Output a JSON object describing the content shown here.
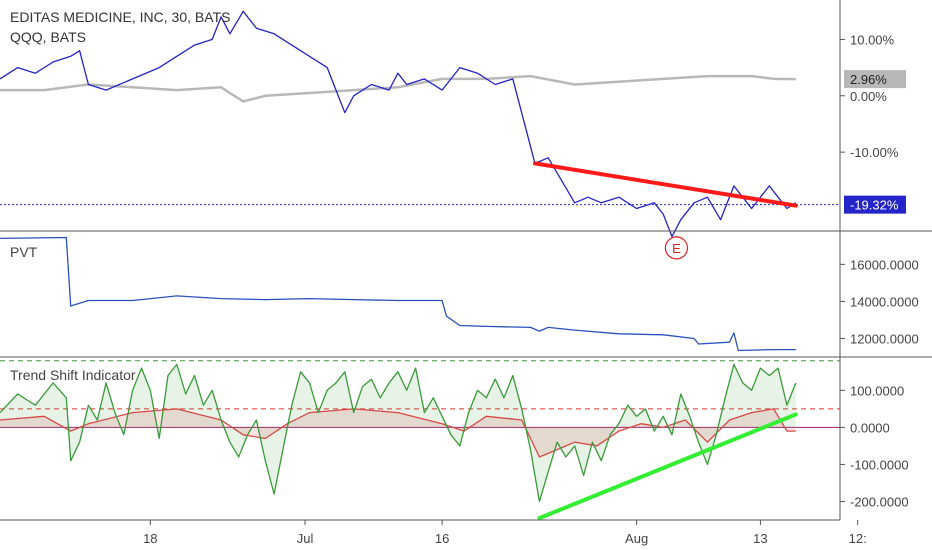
{
  "chart_data": [
    {
      "type": "line",
      "title": "EDITAS MEDICINE, INC, 30, BATS",
      "subtitle": "QQQ, BATS",
      "yticks": [
        "10.00%",
        "0.00%",
        "-10.00%"
      ],
      "ylim": [
        -24,
        17
      ],
      "grid": false,
      "series": [
        {
          "name": "EDITAS MEDICINE, INC",
          "color": "#2424c8",
          "points": [
            [
              0,
              3
            ],
            [
              4,
              5
            ],
            [
              8,
              4
            ],
            [
              12,
              6
            ],
            [
              16,
              7
            ],
            [
              18,
              8
            ],
            [
              20,
              2
            ],
            [
              24,
              1
            ],
            [
              30,
              3
            ],
            [
              36,
              5
            ],
            [
              40,
              7
            ],
            [
              44,
              9
            ],
            [
              48,
              10
            ],
            [
              50,
              14
            ],
            [
              52,
              11
            ],
            [
              55,
              15
            ],
            [
              58,
              12
            ],
            [
              62,
              11
            ],
            [
              66,
              9
            ],
            [
              70,
              7
            ],
            [
              74,
              5
            ],
            [
              76,
              1
            ],
            [
              78,
              -3
            ],
            [
              80,
              0
            ],
            [
              84,
              2
            ],
            [
              88,
              1
            ],
            [
              90,
              4
            ],
            [
              92,
              2
            ],
            [
              96,
              3
            ],
            [
              100,
              1
            ],
            [
              104,
              5
            ],
            [
              108,
              4
            ],
            [
              112,
              2
            ],
            [
              116,
              3
            ],
            [
              119,
              -6
            ],
            [
              121,
              -12
            ],
            [
              124,
              -11
            ],
            [
              127,
              -15
            ],
            [
              130,
              -19
            ],
            [
              133,
              -18
            ],
            [
              136,
              -19
            ],
            [
              140,
              -18
            ],
            [
              144,
              -20
            ],
            [
              148,
              -19
            ],
            [
              150,
              -21
            ],
            [
              152,
              -25
            ],
            [
              154,
              -22
            ],
            [
              157,
              -19
            ],
            [
              160,
              -18
            ],
            [
              163,
              -22
            ],
            [
              166,
              -16
            ],
            [
              168,
              -18
            ],
            [
              170,
              -20
            ],
            [
              172,
              -18
            ],
            [
              174,
              -16
            ],
            [
              176,
              -18
            ],
            [
              178,
              -20
            ],
            [
              180,
              -19
            ]
          ]
        },
        {
          "name": "QQQ, BATS",
          "color": "#b8b8b8",
          "points": [
            [
              0,
              1
            ],
            [
              10,
              1
            ],
            [
              20,
              2
            ],
            [
              30,
              1.5
            ],
            [
              40,
              1
            ],
            [
              50,
              1.5
            ],
            [
              55,
              -1
            ],
            [
              60,
              0
            ],
            [
              70,
              0.5
            ],
            [
              80,
              1
            ],
            [
              90,
              1.5
            ],
            [
              100,
              3
            ],
            [
              110,
              3
            ],
            [
              120,
              3.5
            ],
            [
              130,
              2
            ],
            [
              140,
              2.5
            ],
            [
              150,
              3
            ],
            [
              160,
              3.5
            ],
            [
              170,
              3.5
            ],
            [
              175,
              3
            ],
            [
              180,
              2.96
            ]
          ]
        }
      ],
      "trendline": {
        "color": "#ff1a1a",
        "points": [
          [
            121,
            -12
          ],
          [
            180,
            -19.5
          ]
        ]
      },
      "price_line": {
        "value": -19.32,
        "color": "#2424c8"
      },
      "labels": [
        {
          "text": "2.96%",
          "value": 2.96,
          "color": "#b8b8b8"
        },
        {
          "text": "-19.32%",
          "value": -19.32,
          "color": "#2424c8"
        }
      ],
      "event": {
        "text": "E",
        "x": 153,
        "value": -27,
        "color": "#e02020"
      }
    },
    {
      "type": "line",
      "title": "PVT",
      "yticks": [
        "16000.0000",
        "14000.0000",
        "12000.0000"
      ],
      "ylim": [
        11000,
        17800
      ],
      "series": [
        {
          "color": "#2a52be",
          "points": [
            [
              0,
              17400
            ],
            [
              15,
              17450
            ],
            [
              16,
              13750
            ],
            [
              20,
              14050
            ],
            [
              30,
              14050
            ],
            [
              40,
              14300
            ],
            [
              50,
              14150
            ],
            [
              60,
              14100
            ],
            [
              70,
              14150
            ],
            [
              80,
              14100
            ],
            [
              90,
              14050
            ],
            [
              100,
              14050
            ],
            [
              101,
              13200
            ],
            [
              104,
              12700
            ],
            [
              110,
              12650
            ],
            [
              120,
              12600
            ],
            [
              122,
              12400
            ],
            [
              124,
              12600
            ],
            [
              130,
              12450
            ],
            [
              140,
              12250
            ],
            [
              150,
              12200
            ],
            [
              157,
              12000
            ],
            [
              158,
              11700
            ],
            [
              165,
              11800
            ],
            [
              166,
              12300
            ],
            [
              167,
              11350
            ],
            [
              175,
              11400
            ],
            [
              180,
              11400
            ]
          ]
        }
      ]
    },
    {
      "type": "line",
      "title": "Trend Shift Indicator",
      "yticks": [
        "100.0000",
        "0.0000",
        "-100.0000",
        "-200.0000"
      ],
      "ylim": [
        -250,
        190
      ],
      "series": [
        {
          "color": "#3a9a3a",
          "points": [
            [
              0,
              40
            ],
            [
              4,
              90
            ],
            [
              8,
              60
            ],
            [
              12,
              120
            ],
            [
              15,
              80
            ],
            [
              16,
              -90
            ],
            [
              18,
              -40
            ],
            [
              20,
              60
            ],
            [
              22,
              20
            ],
            [
              24,
              120
            ],
            [
              26,
              40
            ],
            [
              28,
              -20
            ],
            [
              30,
              100
            ],
            [
              32,
              160
            ],
            [
              34,
              100
            ],
            [
              36,
              -30
            ],
            [
              38,
              140
            ],
            [
              40,
              170
            ],
            [
              42,
              90
            ],
            [
              44,
              140
            ],
            [
              46,
              60
            ],
            [
              48,
              100
            ],
            [
              50,
              20
            ],
            [
              52,
              -40
            ],
            [
              54,
              -80
            ],
            [
              56,
              -20
            ],
            [
              58,
              20
            ],
            [
              60,
              -90
            ],
            [
              62,
              -180
            ],
            [
              64,
              -60
            ],
            [
              66,
              60
            ],
            [
              68,
              150
            ],
            [
              70,
              120
            ],
            [
              72,
              40
            ],
            [
              74,
              100
            ],
            [
              76,
              120
            ],
            [
              78,
              150
            ],
            [
              80,
              40
            ],
            [
              82,
              110
            ],
            [
              84,
              130
            ],
            [
              86,
              80
            ],
            [
              88,
              120
            ],
            [
              90,
              150
            ],
            [
              92,
              100
            ],
            [
              94,
              160
            ],
            [
              96,
              40
            ],
            [
              98,
              80
            ],
            [
              100,
              30
            ],
            [
              102,
              -20
            ],
            [
              104,
              -50
            ],
            [
              106,
              40
            ],
            [
              108,
              100
            ],
            [
              110,
              80
            ],
            [
              112,
              130
            ],
            [
              114,
              80
            ],
            [
              116,
              140
            ],
            [
              118,
              50
            ],
            [
              120,
              -60
            ],
            [
              122,
              -200
            ],
            [
              124,
              -120
            ],
            [
              126,
              -40
            ],
            [
              128,
              -80
            ],
            [
              130,
              -50
            ],
            [
              132,
              -130
            ],
            [
              134,
              -40
            ],
            [
              136,
              -90
            ],
            [
              138,
              -20
            ],
            [
              140,
              10
            ],
            [
              142,
              60
            ],
            [
              144,
              30
            ],
            [
              146,
              50
            ],
            [
              148,
              -10
            ],
            [
              150,
              30
            ],
            [
              152,
              -20
            ],
            [
              154,
              90
            ],
            [
              156,
              30
            ],
            [
              158,
              -40
            ],
            [
              160,
              -100
            ],
            [
              162,
              -20
            ],
            [
              164,
              80
            ],
            [
              166,
              170
            ],
            [
              168,
              120
            ],
            [
              170,
              100
            ],
            [
              172,
              160
            ],
            [
              174,
              140
            ],
            [
              176,
              160
            ],
            [
              178,
              60
            ],
            [
              180,
              120
            ]
          ]
        },
        {
          "color": "#d84848",
          "points": [
            [
              0,
              20
            ],
            [
              10,
              30
            ],
            [
              16,
              -10
            ],
            [
              20,
              10
            ],
            [
              30,
              40
            ],
            [
              40,
              50
            ],
            [
              50,
              20
            ],
            [
              55,
              -20
            ],
            [
              60,
              -30
            ],
            [
              65,
              10
            ],
            [
              70,
              40
            ],
            [
              80,
              50
            ],
            [
              90,
              40
            ],
            [
              100,
              10
            ],
            [
              105,
              -10
            ],
            [
              110,
              30
            ],
            [
              118,
              20
            ],
            [
              122,
              -80
            ],
            [
              126,
              -60
            ],
            [
              130,
              -40
            ],
            [
              135,
              -50
            ],
            [
              140,
              -10
            ],
            [
              145,
              10
            ],
            [
              150,
              0
            ],
            [
              155,
              20
            ],
            [
              160,
              -40
            ],
            [
              165,
              20
            ],
            [
              170,
              40
            ],
            [
              175,
              50
            ],
            [
              178,
              -10
            ],
            [
              180,
              -10
            ]
          ]
        }
      ],
      "levels": [
        {
          "value": 180,
          "color": "#3a9a3a"
        },
        {
          "value": 50,
          "color": "#e03030"
        },
        {
          "value": 0,
          "color": "#a02070"
        }
      ],
      "trendline": {
        "color": "#33ee33",
        "points": [
          [
            122,
            -245
          ],
          [
            180,
            35
          ]
        ]
      }
    }
  ],
  "x_axis": {
    "range": [
      0,
      190
    ],
    "ticks": [
      {
        "x": 34,
        "label": "18"
      },
      {
        "x": 69,
        "label": "Jul"
      },
      {
        "x": 100,
        "label": "16"
      },
      {
        "x": 144,
        "label": "Aug"
      },
      {
        "x": 172,
        "label": "13"
      },
      {
        "x": 194,
        "label": "12:"
      }
    ]
  }
}
